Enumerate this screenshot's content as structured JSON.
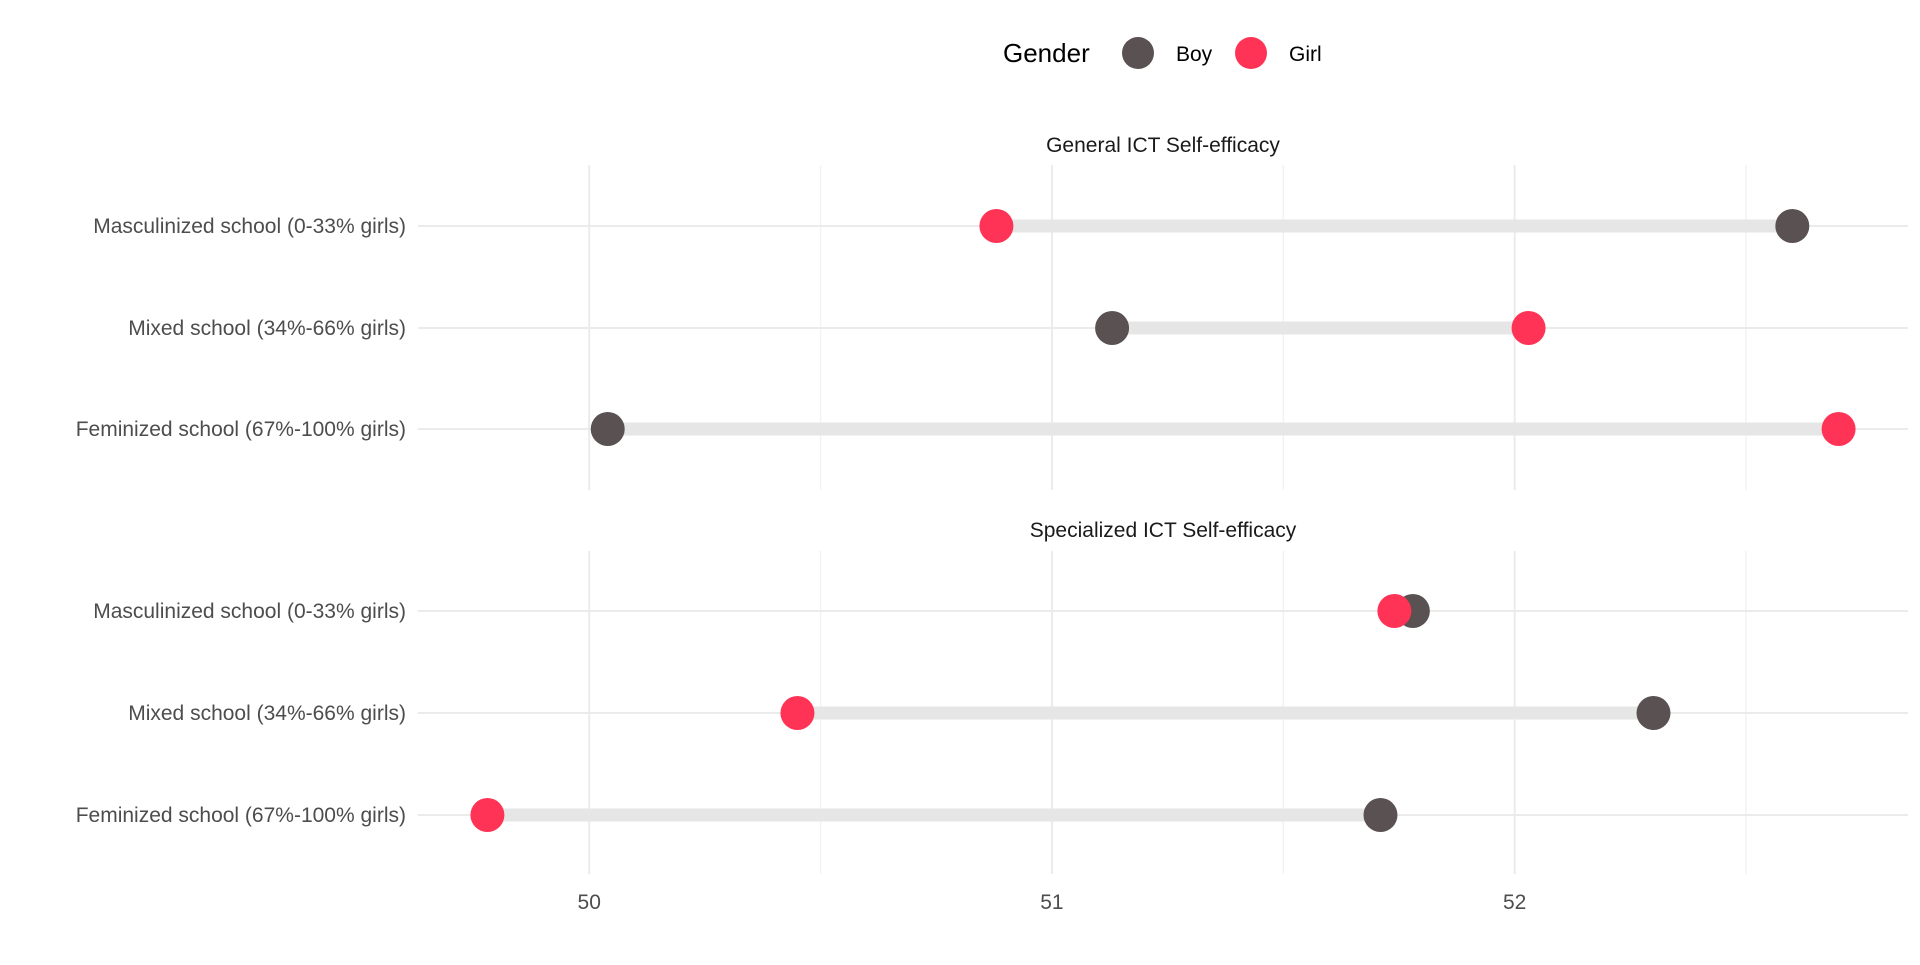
{
  "chart_data": {
    "type": "dumbbell",
    "legend": {
      "title": "Gender",
      "position": "top",
      "entries": [
        {
          "label": "Boy",
          "color": "#5a5252"
        },
        {
          "label": "Girl",
          "color": "#ff3355"
        }
      ]
    },
    "categories": [
      "Masculinized school (0-33% girls)",
      "Mixed school (34%-66% girls)",
      "Feminized school (67%-100% girls)"
    ],
    "x_axis": {
      "ticks": [
        {
          "value": 50,
          "label": "50"
        },
        {
          "value": 51,
          "label": "51"
        },
        {
          "value": 52,
          "label": "52"
        }
      ],
      "xlim": [
        49.63,
        52.85
      ],
      "grid": true
    },
    "panels": [
      {
        "title": "General ICT Self-efficacy",
        "rows": [
          {
            "category": "Masculinized school (0-33% girls)",
            "Boy": 52.6,
            "Girl": 50.88
          },
          {
            "category": "Mixed school (34%-66% girls)",
            "Boy": 51.13,
            "Girl": 52.03
          },
          {
            "category": "Feminized school (67%-100% girls)",
            "Boy": 50.04,
            "Girl": 52.7
          }
        ]
      },
      {
        "title": "Specialized ICT Self-efficacy",
        "rows": [
          {
            "category": "Masculinized school (0-33% girls)",
            "Boy": 51.78,
            "Girl": 51.74
          },
          {
            "category": "Mixed school (34%-66% girls)",
            "Boy": 52.3,
            "Girl": 50.45
          },
          {
            "category": "Feminized school (67%-100% girls)",
            "Boy": 51.71,
            "Girl": 49.78
          }
        ]
      }
    ]
  }
}
